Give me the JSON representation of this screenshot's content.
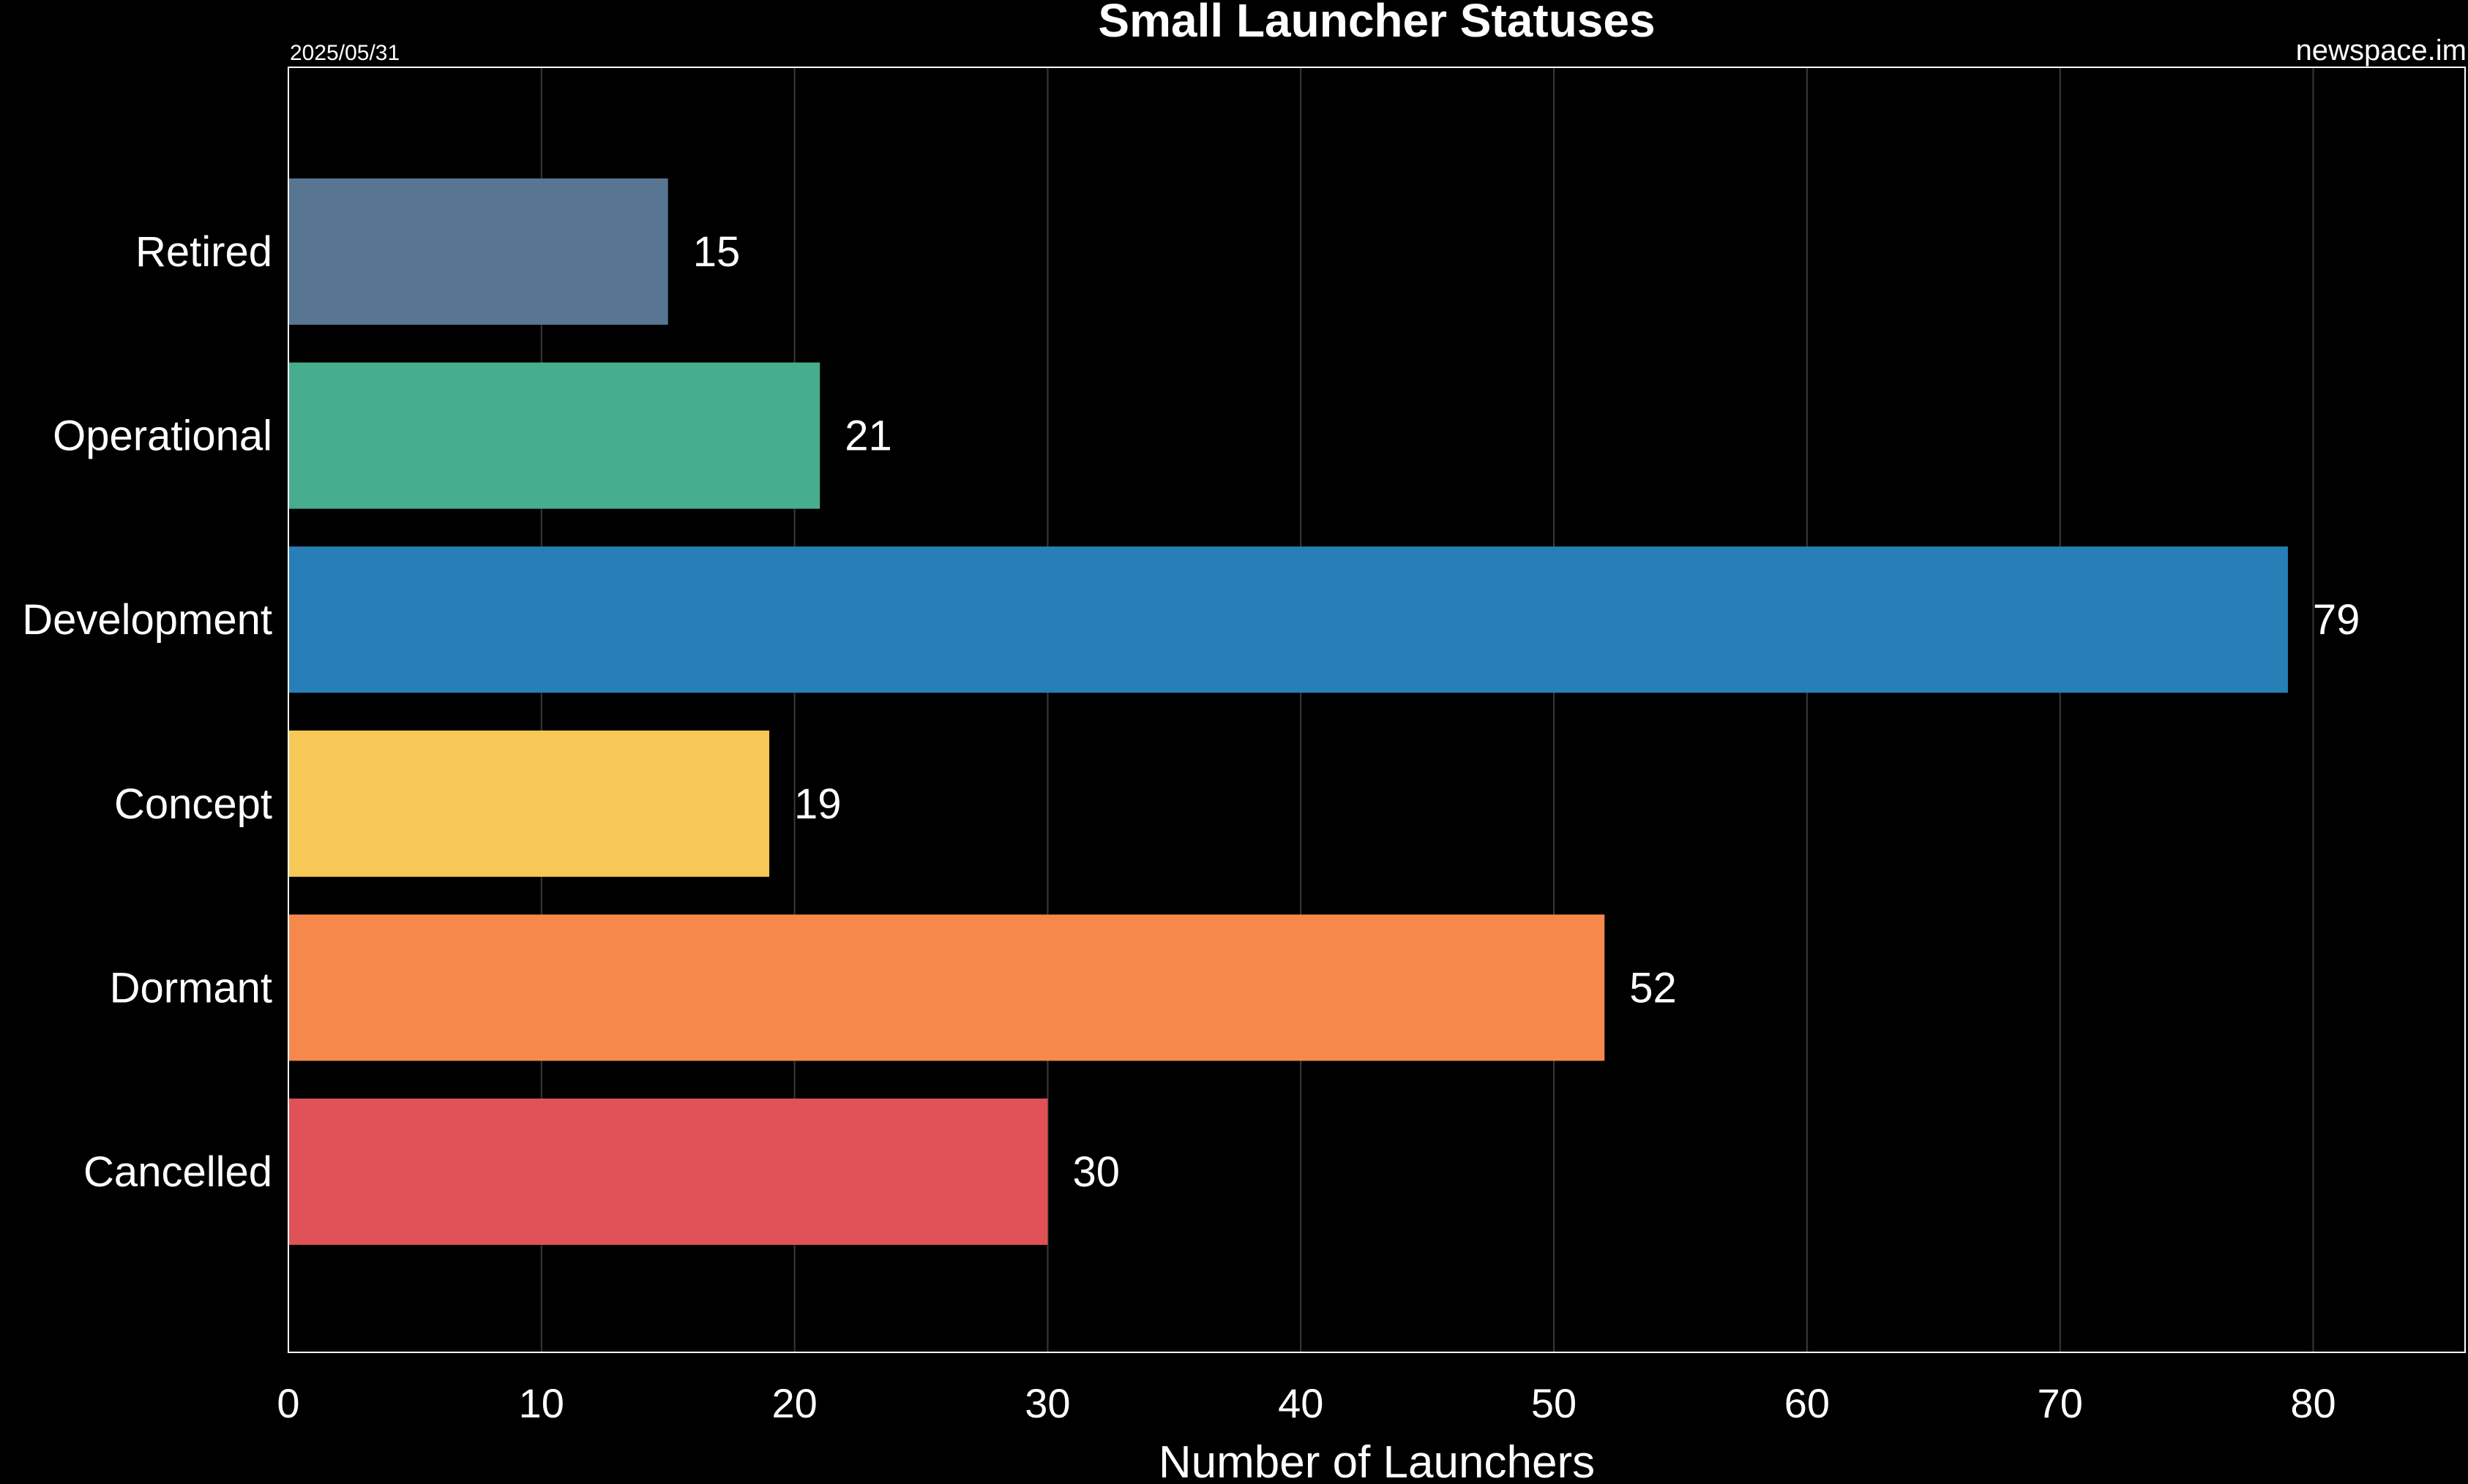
{
  "chart_data": {
    "type": "bar",
    "orientation": "horizontal",
    "title": "Small Launcher Statuses",
    "date_label": "2025/05/31",
    "source_label": "newspace.im",
    "xlabel": "Number of Launchers",
    "ylabel": "",
    "categories": [
      "Retired",
      "Operational",
      "Development",
      "Concept",
      "Dormant",
      "Cancelled"
    ],
    "values": [
      15,
      21,
      79,
      19,
      52,
      30
    ],
    "colors": [
      "#587592",
      "#46AD8D",
      "#287EB6",
      "#F7C856",
      "#F7884B",
      "#E15258"
    ],
    "xlim": [
      0,
      86
    ],
    "xticks": [
      0,
      10,
      20,
      30,
      40,
      50,
      60,
      70,
      80
    ],
    "grid": true,
    "background": "#000000",
    "text_color": "#FFFFFF"
  }
}
